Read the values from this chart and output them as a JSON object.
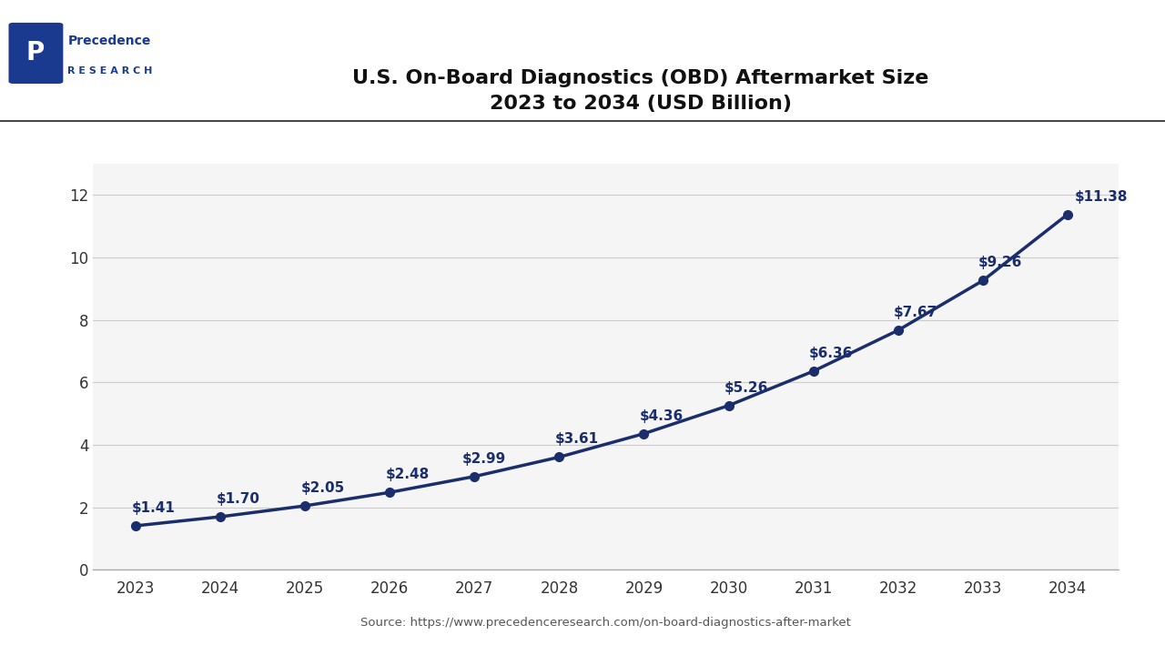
{
  "title_line1": "U.S. On-Board Diagnostics (OBD) Aftermarket Size",
  "title_line2": "2023 to 2034 (USD Billion)",
  "years": [
    2023,
    2024,
    2025,
    2026,
    2027,
    2028,
    2029,
    2030,
    2031,
    2032,
    2033,
    2034
  ],
  "values": [
    1.41,
    1.7,
    2.05,
    2.48,
    2.99,
    3.61,
    4.36,
    5.26,
    6.36,
    7.67,
    9.26,
    11.38
  ],
  "labels": [
    "$1.41",
    "$1.70",
    "$2.05",
    "$2.48",
    "$2.99",
    "$3.61",
    "$4.36",
    "$5.26",
    "$6.36",
    "$7.67",
    "$9.26",
    "$11.38"
  ],
  "line_color": "#1a2e6e",
  "marker_color": "#1a2e6e",
  "background_color": "#ffffff",
  "plot_bg_color": "#f5f5f5",
  "grid_color": "#cccccc",
  "ylim": [
    0,
    13
  ],
  "yticks": [
    0,
    2,
    4,
    6,
    8,
    10,
    12
  ],
  "source_text": "Source: https://www.precedenceresearch.com/on-board-diagnostics-after-market",
  "line_width": 2.5,
  "marker_size": 7,
  "label_dx": [
    -0.05,
    -0.05,
    -0.05,
    -0.05,
    -0.15,
    -0.05,
    -0.05,
    -0.05,
    -0.05,
    -0.05,
    -0.05,
    0.08
  ],
  "label_dy": [
    0.35,
    0.35,
    0.35,
    0.35,
    0.35,
    0.35,
    0.35,
    0.35,
    0.35,
    0.35,
    0.35,
    0.35
  ]
}
